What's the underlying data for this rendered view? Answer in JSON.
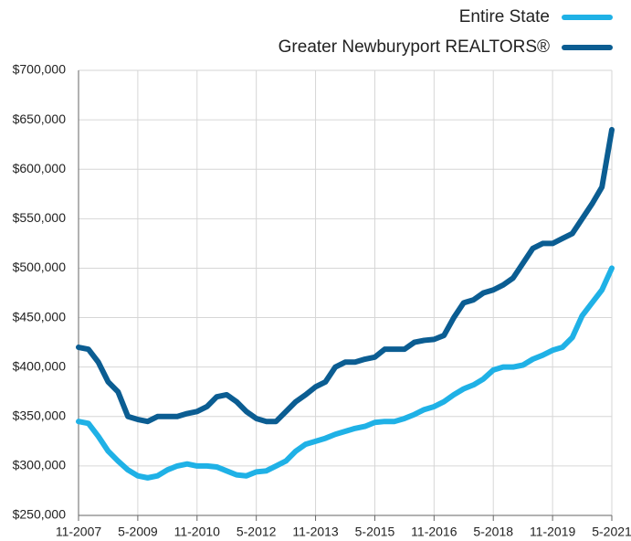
{
  "chart_data": {
    "type": "line",
    "x": [
      "11-2007",
      "2-2008",
      "5-2008",
      "8-2008",
      "11-2008",
      "2-2009",
      "5-2009",
      "8-2009",
      "11-2009",
      "2-2010",
      "5-2010",
      "8-2010",
      "11-2010",
      "2-2011",
      "5-2011",
      "8-2011",
      "11-2011",
      "2-2012",
      "5-2012",
      "8-2012",
      "11-2012",
      "2-2013",
      "5-2013",
      "8-2013",
      "11-2013",
      "2-2014",
      "5-2014",
      "8-2014",
      "11-2014",
      "2-2015",
      "5-2015",
      "8-2015",
      "11-2015",
      "2-2016",
      "5-2016",
      "8-2016",
      "11-2016",
      "2-2017",
      "5-2017",
      "8-2017",
      "11-2017",
      "2-2018",
      "5-2018",
      "8-2018",
      "11-2018",
      "2-2019",
      "5-2019",
      "8-2019",
      "11-2019",
      "2-2020",
      "5-2020",
      "8-2020",
      "11-2020",
      "2-2021",
      "5-2021"
    ],
    "xticks": [
      "11-2007",
      "5-2009",
      "11-2010",
      "5-2012",
      "11-2013",
      "5-2015",
      "11-2016",
      "5-2018",
      "11-2019",
      "5-2021"
    ],
    "series": [
      {
        "name": "Entire State",
        "color": "#1fb1e6",
        "values": [
          345000,
          343000,
          330000,
          315000,
          305000,
          296000,
          290000,
          288000,
          290000,
          296000,
          300000,
          302000,
          300000,
          300000,
          299000,
          295000,
          291000,
          290000,
          294000,
          295000,
          300000,
          305000,
          315000,
          322000,
          325000,
          328000,
          332000,
          335000,
          338000,
          340000,
          344000,
          345000,
          345000,
          348000,
          352000,
          357000,
          360000,
          365000,
          372000,
          378000,
          382000,
          388000,
          397000,
          400000,
          400000,
          402000,
          408000,
          412000,
          417000,
          420000,
          430000,
          452000,
          465000,
          478000,
          500000
        ]
      },
      {
        "name": "Greater Newburyport REALTORS®",
        "color": "#0b5d92",
        "values": [
          420000,
          418000,
          405000,
          385000,
          375000,
          350000,
          347000,
          345000,
          350000,
          350000,
          350000,
          353000,
          355000,
          360000,
          370000,
          372000,
          365000,
          355000,
          348000,
          345000,
          345000,
          355000,
          365000,
          372000,
          380000,
          385000,
          400000,
          405000,
          405000,
          408000,
          410000,
          418000,
          418000,
          418000,
          425000,
          427000,
          428000,
          432000,
          450000,
          465000,
          468000,
          475000,
          478000,
          483000,
          490000,
          505000,
          520000,
          525000,
          525000,
          530000,
          535000,
          550000,
          565000,
          582000,
          640000
        ]
      }
    ],
    "ylim": [
      250000,
      700000
    ],
    "yticks": [
      {
        "value": 250000,
        "label": "$250,000"
      },
      {
        "value": 300000,
        "label": "$300,000"
      },
      {
        "value": 350000,
        "label": "$350,000"
      },
      {
        "value": 400000,
        "label": "$400,000"
      },
      {
        "value": 450000,
        "label": "$450,000"
      },
      {
        "value": 500000,
        "label": "$500,000"
      },
      {
        "value": 550000,
        "label": "$550,000"
      },
      {
        "value": 600000,
        "label": "$600,000"
      },
      {
        "value": 650000,
        "label": "$650,000"
      },
      {
        "value": 700000,
        "label": "$700,000"
      }
    ],
    "grid": true
  }
}
